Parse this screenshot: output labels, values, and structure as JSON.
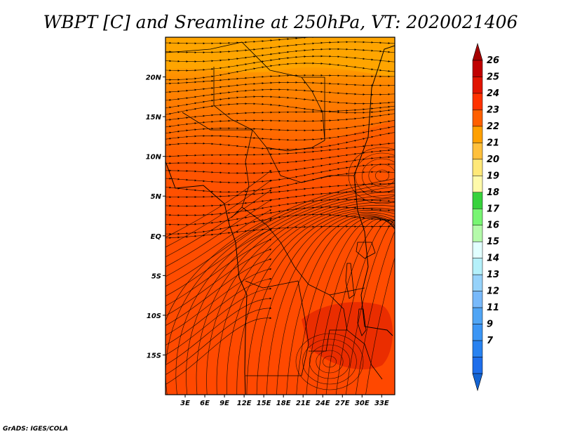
{
  "chart_data": {
    "type": "heatmap",
    "title": "WBPT [C] and Sreamline at 250hPa, VT: 2020021406",
    "xlabel": "",
    "ylabel": "",
    "x_ticks": [
      "3E",
      "6E",
      "9E",
      "12E",
      "15E",
      "18E",
      "21E",
      "24E",
      "27E",
      "30E",
      "33E"
    ],
    "x_tick_values": [
      3,
      6,
      9,
      12,
      15,
      18,
      21,
      24,
      27,
      30,
      33
    ],
    "y_ticks": [
      "20N",
      "15N",
      "10N",
      "5N",
      "EQ",
      "5S",
      "10S",
      "15S"
    ],
    "y_tick_values": [
      20,
      15,
      10,
      5,
      0,
      -5,
      -10,
      -15
    ],
    "xlim": [
      0,
      35
    ],
    "ylim": [
      -20,
      25
    ],
    "colorbar": {
      "levels": [
        "7",
        "9",
        "11",
        "12",
        "13",
        "14",
        "15",
        "16",
        "17",
        "18",
        "19",
        "20",
        "21",
        "22",
        "23",
        "24",
        "25",
        "26"
      ],
      "colors": [
        "#1464d2",
        "#1e6eeb",
        "#2882f0",
        "#3c96f5",
        "#50a5f5",
        "#78b9fa",
        "#96d2fa",
        "#b4f0fa",
        "#e1ffff",
        "#b4faaa",
        "#78f573",
        "#37d23c",
        "#fffaaa",
        "#ffe878",
        "#ffc03c",
        "#ffa000",
        "#ff6000",
        "#ff3200",
        "#e11400",
        "#c00000",
        "#a50000"
      ]
    },
    "field_regions": [
      {
        "level": "20-21",
        "lat_range": [
          21,
          25
        ],
        "lon_range": [
          0,
          35
        ]
      },
      {
        "level": "21-22",
        "lat_range": [
          15,
          21
        ],
        "lon_range": [
          0,
          35
        ]
      },
      {
        "level": "22-23",
        "lat_range": [
          8,
          15
        ],
        "lon_range": [
          0,
          35
        ]
      },
      {
        "level": "23-24",
        "lat_range": [
          -20,
          8
        ],
        "lon_range": [
          0,
          35
        ]
      },
      {
        "level": "24-25",
        "lat_range": [
          -16,
          -9
        ],
        "lon_range": [
          21,
          35
        ]
      }
    ],
    "credit": "GrADS: IGES/COLA"
  }
}
